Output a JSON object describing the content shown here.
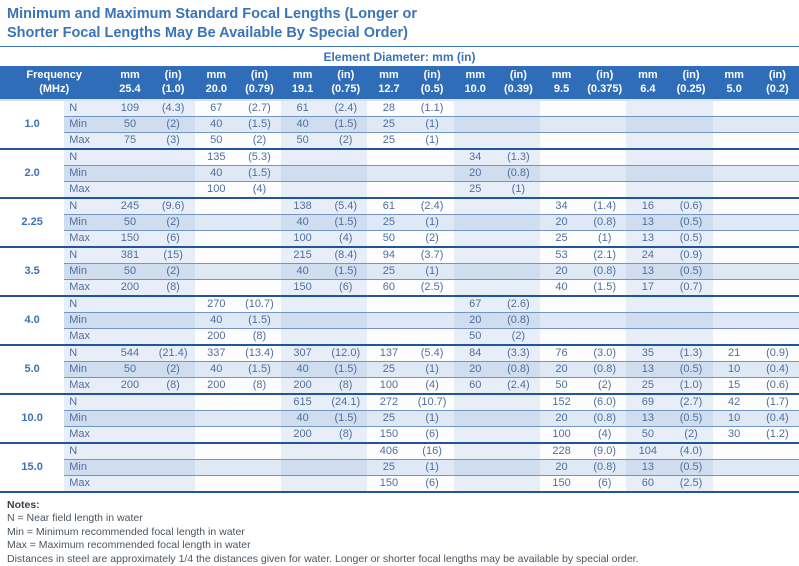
{
  "title": "Minimum and Maximum Standard Focal Lengths (Longer or Shorter Focal Lengths May Be Available By Special Order)",
  "colors": {
    "accent_blue": "#3b73b9",
    "header_bg": "#2f6db8",
    "body_text": "#4f6fa0",
    "stripe_light": "#e8eef7",
    "min_row": "#dfe8f5"
  },
  "table": {
    "super_header": "Element Diameter: mm (in)",
    "freq_header_line1": "Frequency",
    "freq_header_line2": "(MHz)",
    "unit_mm": "mm",
    "unit_in": "(in)",
    "diameters": [
      {
        "mm": "25.4",
        "in": "(1.0)"
      },
      {
        "mm": "20.0",
        "in": "(0.79)"
      },
      {
        "mm": "19.1",
        "in": "(0.75)"
      },
      {
        "mm": "12.7",
        "in": "(0.5)"
      },
      {
        "mm": "10.0",
        "in": "(0.39)"
      },
      {
        "mm": "9.5",
        "in": "(0.375)"
      },
      {
        "mm": "6.4",
        "in": "(0.25)"
      },
      {
        "mm": "5.0",
        "in": "(0.2)"
      }
    ],
    "row_labels": [
      "N",
      "Min",
      "Max"
    ],
    "groups": [
      {
        "frequency": "1.0",
        "rows": {
          "N": [
            "109",
            "(4.3)",
            "67",
            "(2.7)",
            "61",
            "(2.4)",
            "28",
            "(1.1)",
            "",
            "",
            "",
            "",
            "",
            "",
            "",
            ""
          ],
          "Min": [
            "50",
            "(2)",
            "40",
            "(1.5)",
            "40",
            "(1.5)",
            "25",
            "(1)",
            "",
            "",
            "",
            "",
            "",
            "",
            "",
            ""
          ],
          "Max": [
            "75",
            "(3)",
            "50",
            "(2)",
            "50",
            "(2)",
            "25",
            "(1)",
            "",
            "",
            "",
            "",
            "",
            "",
            "",
            ""
          ]
        }
      },
      {
        "frequency": "2.0",
        "rows": {
          "N": [
            "",
            "",
            "135",
            "(5.3)",
            "",
            "",
            "",
            "",
            "34",
            "(1.3)",
            "",
            "",
            "",
            "",
            "",
            ""
          ],
          "Min": [
            "",
            "",
            "40",
            "(1.5)",
            "",
            "",
            "",
            "",
            "20",
            "(0.8)",
            "",
            "",
            "",
            "",
            "",
            ""
          ],
          "Max": [
            "",
            "",
            "100",
            "(4)",
            "",
            "",
            "",
            "",
            "25",
            "(1)",
            "",
            "",
            "",
            "",
            "",
            ""
          ]
        }
      },
      {
        "frequency": "2.25",
        "rows": {
          "N": [
            "245",
            "(9.6)",
            "",
            "",
            "138",
            "(5.4)",
            "61",
            "(2.4)",
            "",
            "",
            "34",
            "(1.4)",
            "16",
            "(0.6)",
            "",
            ""
          ],
          "Min": [
            "50",
            "(2)",
            "",
            "",
            "40",
            "(1.5)",
            "25",
            "(1)",
            "",
            "",
            "20",
            "(0.8)",
            "13",
            "(0.5)",
            "",
            ""
          ],
          "Max": [
            "150",
            "(6)",
            "",
            "",
            "100",
            "(4)",
            "50",
            "(2)",
            "",
            "",
            "25",
            "(1)",
            "13",
            "(0.5)",
            "",
            ""
          ]
        }
      },
      {
        "frequency": "3.5",
        "rows": {
          "N": [
            "381",
            "(15)",
            "",
            "",
            "215",
            "(8.4)",
            "94",
            "(3.7)",
            "",
            "",
            "53",
            "(2.1)",
            "24",
            "(0.9)",
            "",
            ""
          ],
          "Min": [
            "50",
            "(2)",
            "",
            "",
            "40",
            "(1.5)",
            "25",
            "(1)",
            "",
            "",
            "20",
            "(0.8)",
            "13",
            "(0.5)",
            "",
            ""
          ],
          "Max": [
            "200",
            "(8)",
            "",
            "",
            "150",
            "(6)",
            "60",
            "(2.5)",
            "",
            "",
            "40",
            "(1.5)",
            "17",
            "(0.7)",
            "",
            ""
          ]
        }
      },
      {
        "frequency": "4.0",
        "rows": {
          "N": [
            "",
            "",
            "270",
            "(10.7)",
            "",
            "",
            "",
            "",
            "67",
            "(2.6)",
            "",
            "",
            "",
            "",
            "",
            ""
          ],
          "Min": [
            "",
            "",
            "40",
            "(1.5)",
            "",
            "",
            "",
            "",
            "20",
            "(0.8)",
            "",
            "",
            "",
            "",
            "",
            ""
          ],
          "Max": [
            "",
            "",
            "200",
            "(8)",
            "",
            "",
            "",
            "",
            "50",
            "(2)",
            "",
            "",
            "",
            "",
            "",
            ""
          ]
        }
      },
      {
        "frequency": "5.0",
        "rows": {
          "N": [
            "544",
            "(21.4)",
            "337",
            "(13.4)",
            "307",
            "(12.0)",
            "137",
            "(5.4)",
            "84",
            "(3.3)",
            "76",
            "(3.0)",
            "35",
            "(1.3)",
            "21",
            "(0.9)"
          ],
          "Min": [
            "50",
            "(2)",
            "40",
            "(1.5)",
            "40",
            "(1.5)",
            "25",
            "(1)",
            "20",
            "(0.8)",
            "20",
            "(0.8)",
            "13",
            "(0.5)",
            "10",
            "(0.4)"
          ],
          "Max": [
            "200",
            "(8)",
            "200",
            "(8)",
            "200",
            "(8)",
            "100",
            "(4)",
            "60",
            "(2.4)",
            "50",
            "(2)",
            "25",
            "(1.0)",
            "15",
            "(0.6)"
          ]
        }
      },
      {
        "frequency": "10.0",
        "rows": {
          "N": [
            "",
            "",
            "",
            "",
            "615",
            "(24.1)",
            "272",
            "(10.7)",
            "",
            "",
            "152",
            "(6.0)",
            "69",
            "(2.7)",
            "42",
            "(1.7)"
          ],
          "Min": [
            "",
            "",
            "",
            "",
            "40",
            "(1.5)",
            "25",
            "(1)",
            "",
            "",
            "20",
            "(0.8)",
            "13",
            "(0.5)",
            "10",
            "(0.4)"
          ],
          "Max": [
            "",
            "",
            "",
            "",
            "200",
            "(8)",
            "150",
            "(6)",
            "",
            "",
            "100",
            "(4)",
            "50",
            "(2)",
            "30",
            "(1.2)"
          ]
        }
      },
      {
        "frequency": "15.0",
        "rows": {
          "N": [
            "",
            "",
            "",
            "",
            "",
            "",
            "406",
            "(16)",
            "",
            "",
            "228",
            "(9.0)",
            "104",
            "(4.0)",
            "",
            ""
          ],
          "Min": [
            "",
            "",
            "",
            "",
            "",
            "",
            "25",
            "(1)",
            "",
            "",
            "20",
            "(0.8)",
            "13",
            "(0.5)",
            "",
            ""
          ],
          "Max": [
            "",
            "",
            "",
            "",
            "",
            "",
            "150",
            "(6)",
            "",
            "",
            "150",
            "(6)",
            "60",
            "(2.5)",
            "",
            ""
          ]
        }
      }
    ]
  },
  "notes": {
    "heading": "Notes:",
    "lines": [
      "N = Near field length in water",
      "Min = Minimum recommended focal length in water",
      "Max = Maximum recommended focal length in water",
      "Distances in steel are approximately 1/4 the distances given for water. Longer or shorter focal lengths may be available by special order."
    ]
  }
}
